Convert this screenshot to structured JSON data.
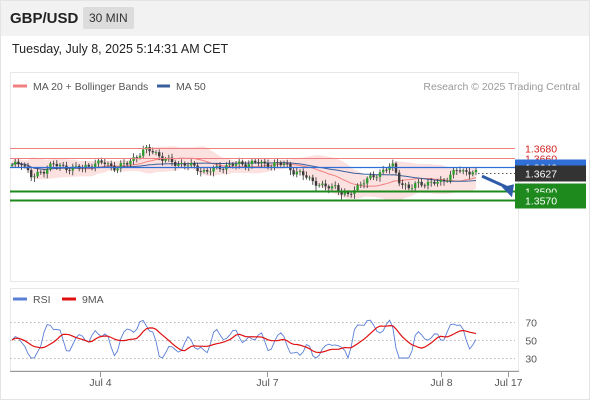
{
  "header": {
    "symbol": "GBP/USD",
    "timeframe": "30 MIN",
    "timestamp": "Tuesday, July 8, 2025 5:14:31 AM CET"
  },
  "legend": {
    "bollinger": {
      "label": "MA 20 + Bollinger Bands",
      "color": "#f08080"
    },
    "ma50": {
      "label": "MA 50",
      "color": "#3a5f9a"
    },
    "credit": "Research © 2025 Trading Central"
  },
  "rsi_legend": {
    "rsi": {
      "label": "RSI",
      "color": "#5b7fd6"
    },
    "ma9": {
      "label": "9MA",
      "color": "#e01010"
    }
  },
  "chart_data": [
    {
      "type": "line",
      "subtype": "candlestick",
      "title": "GBP/USD",
      "x_ticks": [
        "Jul 4",
        "Jul 7",
        "Jul 8",
        "Jul 17"
      ],
      "ylim": [
        1.3545,
        1.3695
      ],
      "price_levels": [
        {
          "value": "1.3680",
          "kind": "resistance",
          "color": "#f08080"
        },
        {
          "value": "1.3660",
          "kind": "resistance",
          "color": "#f08080"
        },
        {
          "value": "1.3640",
          "kind": "pivot",
          "color": "#2f6fd6"
        },
        {
          "value": "1.3627",
          "kind": "last price",
          "color": "#333333"
        },
        {
          "value": "1.3590",
          "kind": "support",
          "color": "#1e8a1e"
        },
        {
          "value": "1.3570",
          "kind": "support",
          "color": "#1e8a1e"
        }
      ],
      "forecast_arrow": {
        "from": 1.3627,
        "to": 1.357,
        "direction": "down"
      }
    },
    {
      "type": "line",
      "title": "RSI",
      "series": [
        {
          "name": "RSI",
          "color": "#5b7fd6"
        },
        {
          "name": "9MA",
          "color": "#e01010"
        }
      ],
      "ylim": [
        25,
        75
      ],
      "y_ticks": [
        "70",
        "50",
        "30"
      ]
    }
  ]
}
